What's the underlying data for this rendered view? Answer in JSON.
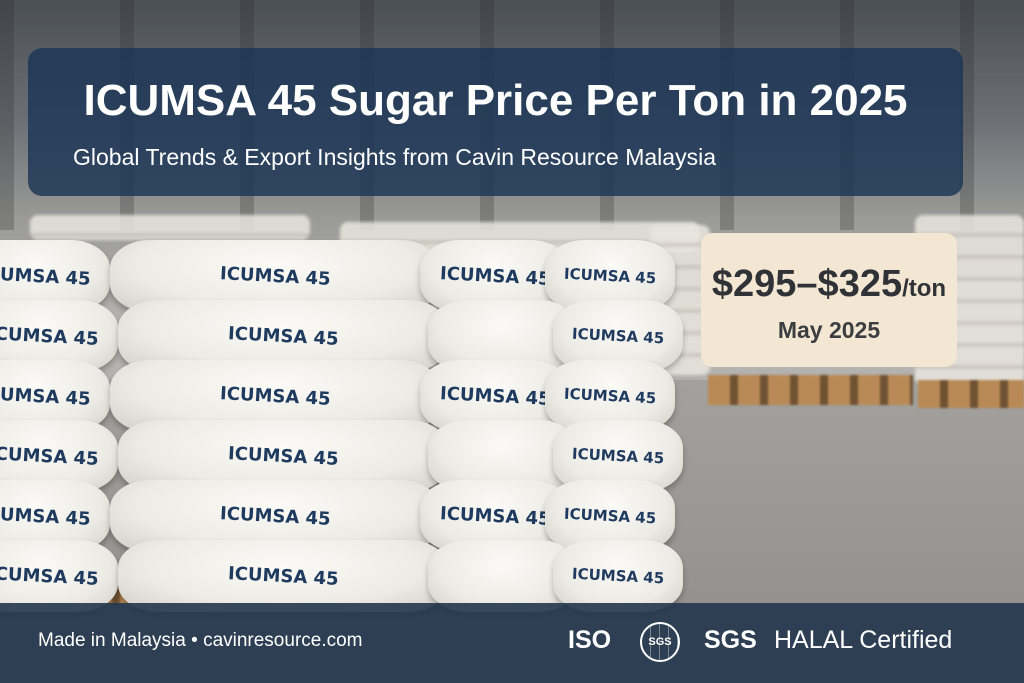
{
  "header": {
    "title": "ICUMSA 45 Sugar Price Per Ton in 2025",
    "subtitle": "Global Trends & Export Insights from Cavin Resource Malaysia"
  },
  "price_card": {
    "range": "$295–$325",
    "unit": "/ton",
    "date": "May 2025"
  },
  "bag_label": "ICUMSA 45",
  "footer": {
    "origin": "Made in Malaysia",
    "separator": "•",
    "website": "cavinresource.com",
    "certifications": [
      "ISO",
      "SGS",
      "HALAL Certified"
    ],
    "sgs_logo_text": "SGS"
  },
  "colors": {
    "title_panel": "#1b3456",
    "price_card": "#f3e6d3",
    "footer": "#24364e",
    "bag_text": "#1e3a5f"
  }
}
